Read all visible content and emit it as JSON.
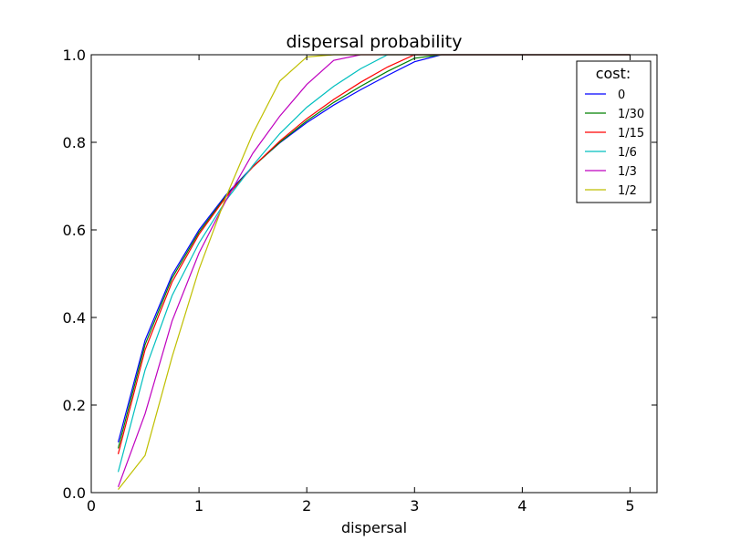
{
  "chart_data": {
    "type": "line",
    "title": "dispersal probability",
    "xlabel": "dispersal",
    "ylabel": "",
    "xlim": [
      0,
      5.25
    ],
    "ylim": [
      0,
      1.0
    ],
    "xticks": [
      0,
      1,
      2,
      3,
      4,
      5
    ],
    "xtick_labels": [
      "0",
      "1",
      "2",
      "3",
      "4",
      "5"
    ],
    "yticks": [
      0.0,
      0.2,
      0.4,
      0.6,
      0.8,
      1.0
    ],
    "ytick_labels": [
      "0.0",
      "0.2",
      "0.4",
      "0.6",
      "0.8",
      "1.0"
    ],
    "grid": false,
    "legend": {
      "title": "cost:",
      "placement": "top-right"
    },
    "x": [
      0.25,
      0.5,
      0.75,
      1.0,
      1.25,
      1.5,
      1.75,
      2.0,
      2.25,
      2.5,
      2.75,
      3.0,
      3.25,
      3.5,
      3.75,
      4.0,
      4.25,
      4.5,
      4.75,
      5.0
    ],
    "series": [
      {
        "name": "0",
        "color": "#0000ff",
        "values": [
          0.115,
          0.348,
          0.497,
          0.6,
          0.68,
          0.745,
          0.799,
          0.845,
          0.885,
          0.92,
          0.953,
          0.984,
          1.0,
          1.0,
          1.0,
          1.0,
          1.0,
          1.0,
          1.0,
          1.0
        ]
      },
      {
        "name": "1/30",
        "color": "#008000",
        "values": [
          0.101,
          0.338,
          0.49,
          0.595,
          0.677,
          0.744,
          0.8,
          0.849,
          0.891,
          0.928,
          0.962,
          0.992,
          1.0,
          1.0,
          1.0,
          1.0,
          1.0,
          1.0,
          1.0,
          1.0
        ]
      },
      {
        "name": "1/15",
        "color": "#ff0000",
        "values": [
          0.088,
          0.326,
          0.481,
          0.59,
          0.675,
          0.744,
          0.803,
          0.854,
          0.898,
          0.937,
          0.972,
          1.0,
          1.0,
          1.0,
          1.0,
          1.0,
          1.0,
          1.0,
          1.0,
          1.0
        ]
      },
      {
        "name": "1/6",
        "color": "#00bfbf",
        "values": [
          0.047,
          0.28,
          0.45,
          0.57,
          0.667,
          0.747,
          0.82,
          0.88,
          0.928,
          0.968,
          1.0,
          1.0,
          1.0,
          1.0,
          1.0,
          1.0,
          1.0,
          1.0,
          1.0,
          1.0
        ]
      },
      {
        "name": "1/3",
        "color": "#bf00bf",
        "values": [
          0.013,
          0.18,
          0.392,
          0.547,
          0.667,
          0.775,
          0.86,
          0.932,
          0.987,
          1.0,
          1.0,
          1.0,
          1.0,
          1.0,
          1.0,
          1.0,
          1.0,
          1.0,
          1.0,
          1.0
        ]
      },
      {
        "name": "1/2",
        "color": "#bfbf00",
        "values": [
          0.007,
          0.085,
          0.31,
          0.51,
          0.675,
          0.82,
          0.94,
          0.995,
          1.0,
          1.0,
          1.0,
          1.0,
          1.0,
          1.0,
          1.0,
          1.0,
          1.0,
          1.0,
          1.0,
          1.0
        ]
      }
    ]
  }
}
